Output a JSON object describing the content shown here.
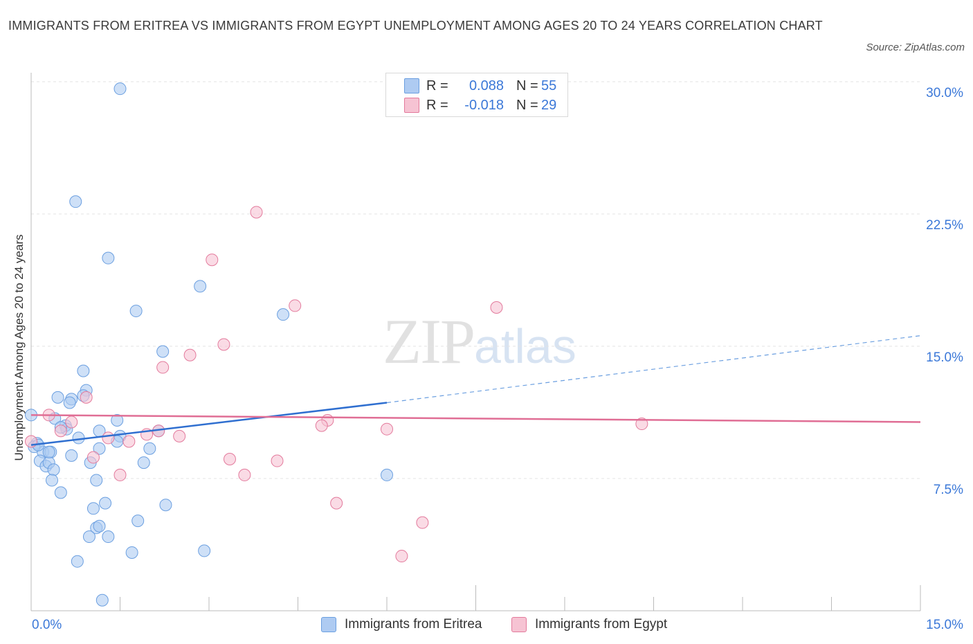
{
  "title": "IMMIGRANTS FROM ERITREA VS IMMIGRANTS FROM EGYPT UNEMPLOYMENT AMONG AGES 20 TO 24 YEARS CORRELATION CHART",
  "source": "Source: ZipAtlas.com",
  "watermark": {
    "zip": "ZIP",
    "atlas": "atlas"
  },
  "legend_top": [
    {
      "label": "R =",
      "r": "0.088",
      "n_label": "N =",
      "n": "55",
      "color": "#aecbf2"
    },
    {
      "label": "R =",
      "r": "-0.018",
      "n_label": "N =",
      "n": "29",
      "color": "#f6c3d3"
    }
  ],
  "chart_data": {
    "type": "scatter",
    "title": "IMMIGRANTS FROM ERITREA VS IMMIGRANTS FROM EGYPT UNEMPLOYMENT AMONG AGES 20 TO 24 YEARS CORRELATION CHART",
    "xlabel": "",
    "ylabel": "Unemployment Among Ages 20 to 24 years",
    "xlim": [
      0,
      15
    ],
    "ylim": [
      0,
      30
    ],
    "x_tick_labels": [
      "0.0%",
      "15.0%"
    ],
    "y_ticks": [
      7.5,
      15,
      22.5,
      30
    ],
    "y_tick_labels": [
      "7.5%",
      "15.0%",
      "22.5%",
      "30.0%"
    ],
    "grid": true,
    "legend": "bottom",
    "series": [
      {
        "name": "Immigrants from Eritrea",
        "color": "#6b9fe0",
        "fill": "#aecbf2",
        "trend": {
          "x": [
            0,
            6
          ],
          "y": [
            9.4,
            11.8
          ],
          "dashed_to": [
            15,
            15.6
          ]
        },
        "points": [
          [
            1.5,
            29.6
          ],
          [
            0.75,
            23.2
          ],
          [
            1.3,
            20.0
          ],
          [
            2.85,
            18.4
          ],
          [
            1.77,
            17.0
          ],
          [
            4.25,
            16.8
          ],
          [
            2.22,
            14.7
          ],
          [
            0.88,
            13.6
          ],
          [
            0.93,
            12.5
          ],
          [
            0.45,
            12.1
          ],
          [
            0.68,
            12.0
          ],
          [
            0.88,
            12.2
          ],
          [
            0.65,
            11.8
          ],
          [
            0.0,
            11.1
          ],
          [
            0.4,
            10.9
          ],
          [
            0.58,
            10.5
          ],
          [
            0.6,
            10.3
          ],
          [
            0.5,
            10.4
          ],
          [
            1.45,
            10.8
          ],
          [
            1.15,
            10.2
          ],
          [
            1.5,
            9.9
          ],
          [
            2.15,
            10.2
          ],
          [
            0.1,
            9.5
          ],
          [
            0.8,
            9.8
          ],
          [
            1.45,
            9.6
          ],
          [
            0.2,
            9.0
          ],
          [
            0.33,
            9.0
          ],
          [
            0.68,
            8.8
          ],
          [
            1.15,
            9.2
          ],
          [
            2.0,
            9.2
          ],
          [
            0.15,
            8.5
          ],
          [
            0.25,
            8.2
          ],
          [
            0.3,
            8.4
          ],
          [
            1.0,
            8.4
          ],
          [
            1.9,
            8.4
          ],
          [
            0.38,
            8.0
          ],
          [
            0.35,
            7.4
          ],
          [
            1.1,
            7.4
          ],
          [
            0.5,
            6.7
          ],
          [
            1.25,
            6.1
          ],
          [
            2.27,
            6.0
          ],
          [
            1.05,
            5.8
          ],
          [
            1.8,
            5.1
          ],
          [
            1.1,
            4.7
          ],
          [
            1.15,
            4.8
          ],
          [
            0.98,
            4.2
          ],
          [
            1.3,
            4.2
          ],
          [
            1.7,
            3.3
          ],
          [
            2.92,
            3.4
          ],
          [
            0.78,
            2.8
          ],
          [
            1.2,
            0.6
          ],
          [
            6.0,
            7.7
          ],
          [
            0.05,
            9.3
          ],
          [
            0.12,
            9.4
          ],
          [
            0.3,
            9.0
          ]
        ]
      },
      {
        "name": "Immigrants from Egypt",
        "color": "#e37a9c",
        "fill": "#f6c3d3",
        "trend": {
          "x": [
            0,
            15
          ],
          "y": [
            11.1,
            10.7
          ]
        },
        "points": [
          [
            3.8,
            22.6
          ],
          [
            3.05,
            19.9
          ],
          [
            4.45,
            17.3
          ],
          [
            7.85,
            17.2
          ],
          [
            3.25,
            15.1
          ],
          [
            2.68,
            14.5
          ],
          [
            2.22,
            13.8
          ],
          [
            0.93,
            12.1
          ],
          [
            0.3,
            11.1
          ],
          [
            0.68,
            10.7
          ],
          [
            0.5,
            10.2
          ],
          [
            5.0,
            10.8
          ],
          [
            4.9,
            10.5
          ],
          [
            6.0,
            10.3
          ],
          [
            10.3,
            10.6
          ],
          [
            2.15,
            10.2
          ],
          [
            1.95,
            10.0
          ],
          [
            2.5,
            9.9
          ],
          [
            1.3,
            9.8
          ],
          [
            1.65,
            9.6
          ],
          [
            0.0,
            9.6
          ],
          [
            1.05,
            8.7
          ],
          [
            3.35,
            8.6
          ],
          [
            4.15,
            8.5
          ],
          [
            1.5,
            7.7
          ],
          [
            3.6,
            7.7
          ],
          [
            5.15,
            6.1
          ],
          [
            6.6,
            5.0
          ],
          [
            6.25,
            3.1
          ]
        ]
      }
    ]
  },
  "legend_bottom": [
    {
      "label": "Immigrants from Eritrea",
      "color": "#aecbf2",
      "border": "#6b9fe0"
    },
    {
      "label": "Immigrants from Egypt",
      "color": "#f6c3d3",
      "border": "#e37a9c"
    }
  ]
}
